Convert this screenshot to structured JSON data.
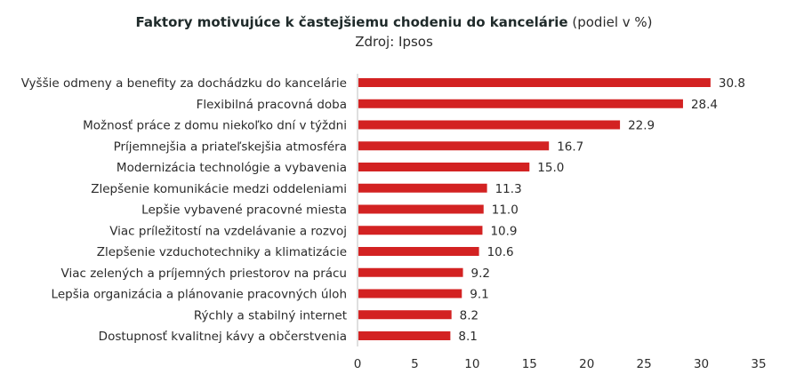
{
  "chart_data": {
    "type": "bar",
    "orientation": "horizontal",
    "title": "Faktory motivujúce k častejšiemu chodeniu do kancelárie",
    "title_unit": "(podiel v %)",
    "subtitle": "Zdroj: Ipsos",
    "categories": [
      "Vyššie odmeny a benefity za dochádzku do kancelárie",
      "Flexibilná pracovná doba",
      "Možnosť práce z domu niekoľko dní v týždni",
      "Príjemnejšia a priateľskejšia atmosféra",
      "Modernizácia technológie a vybavenia",
      "Zlepšenie komunikácie medzi oddeleniami",
      "Lepšie vybavené pracovné miesta",
      "Viac príležitostí na vzdelávanie a rozvoj",
      "Zlepšenie vzduchotechniky a klimatizácie",
      "Viac zelených a príjemných priestorov na prácu",
      "Lepšia organizácia a plánovanie pracovných úloh",
      "Rýchly a stabilný internet",
      "Dostupnosť kvalitnej kávy a občerstvenia"
    ],
    "values": [
      30.8,
      28.4,
      22.9,
      16.7,
      15.0,
      11.3,
      11.0,
      10.9,
      10.6,
      9.2,
      9.1,
      8.2,
      8.1
    ],
    "value_labels": [
      "30.8",
      "28.4",
      "22.9",
      "16.7",
      "15.0",
      "11.3",
      "11.0",
      "10.9",
      "10.6",
      "9.2",
      "9.1",
      "8.2",
      "8.1"
    ],
    "xlim": [
      0,
      35
    ],
    "xticks": [
      0,
      5,
      10,
      15,
      20,
      25,
      30,
      35
    ],
    "grid": false,
    "bar_color": "#d32222"
  }
}
